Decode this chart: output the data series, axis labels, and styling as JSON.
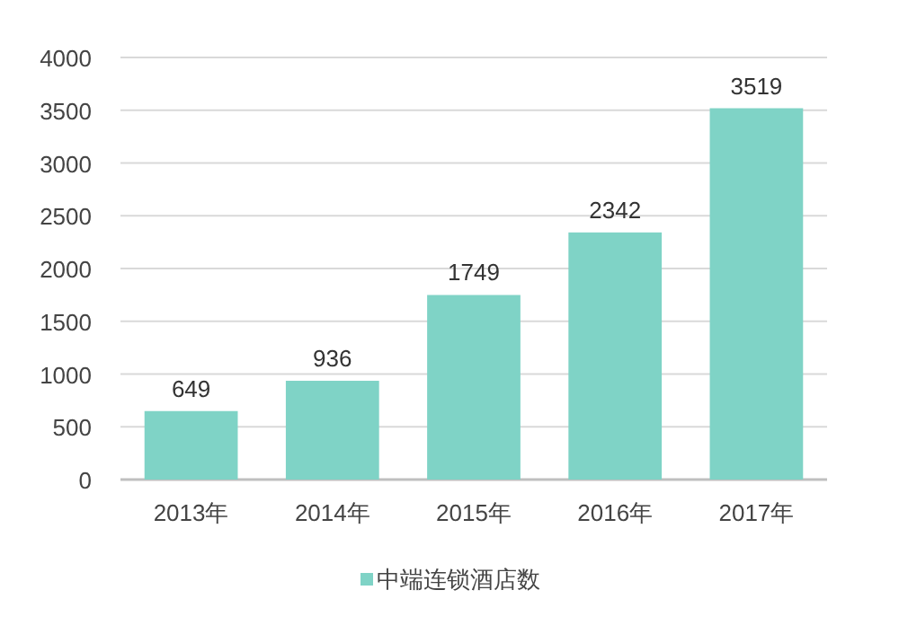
{
  "chart_data": {
    "type": "bar",
    "categories": [
      "2013年",
      "2014年",
      "2015年",
      "2016年",
      "2017年"
    ],
    "series": [
      {
        "name": "中端连锁酒店数",
        "color": "#7fd3c6",
        "values": [
          649,
          936,
          1749,
          2342,
          3519
        ]
      }
    ],
    "ylim": [
      0,
      4000
    ],
    "yticks": [
      0,
      500,
      1000,
      1500,
      2000,
      2500,
      3000,
      3500,
      4000
    ],
    "grid": "y",
    "legend": "bottom",
    "data_labels": true
  }
}
